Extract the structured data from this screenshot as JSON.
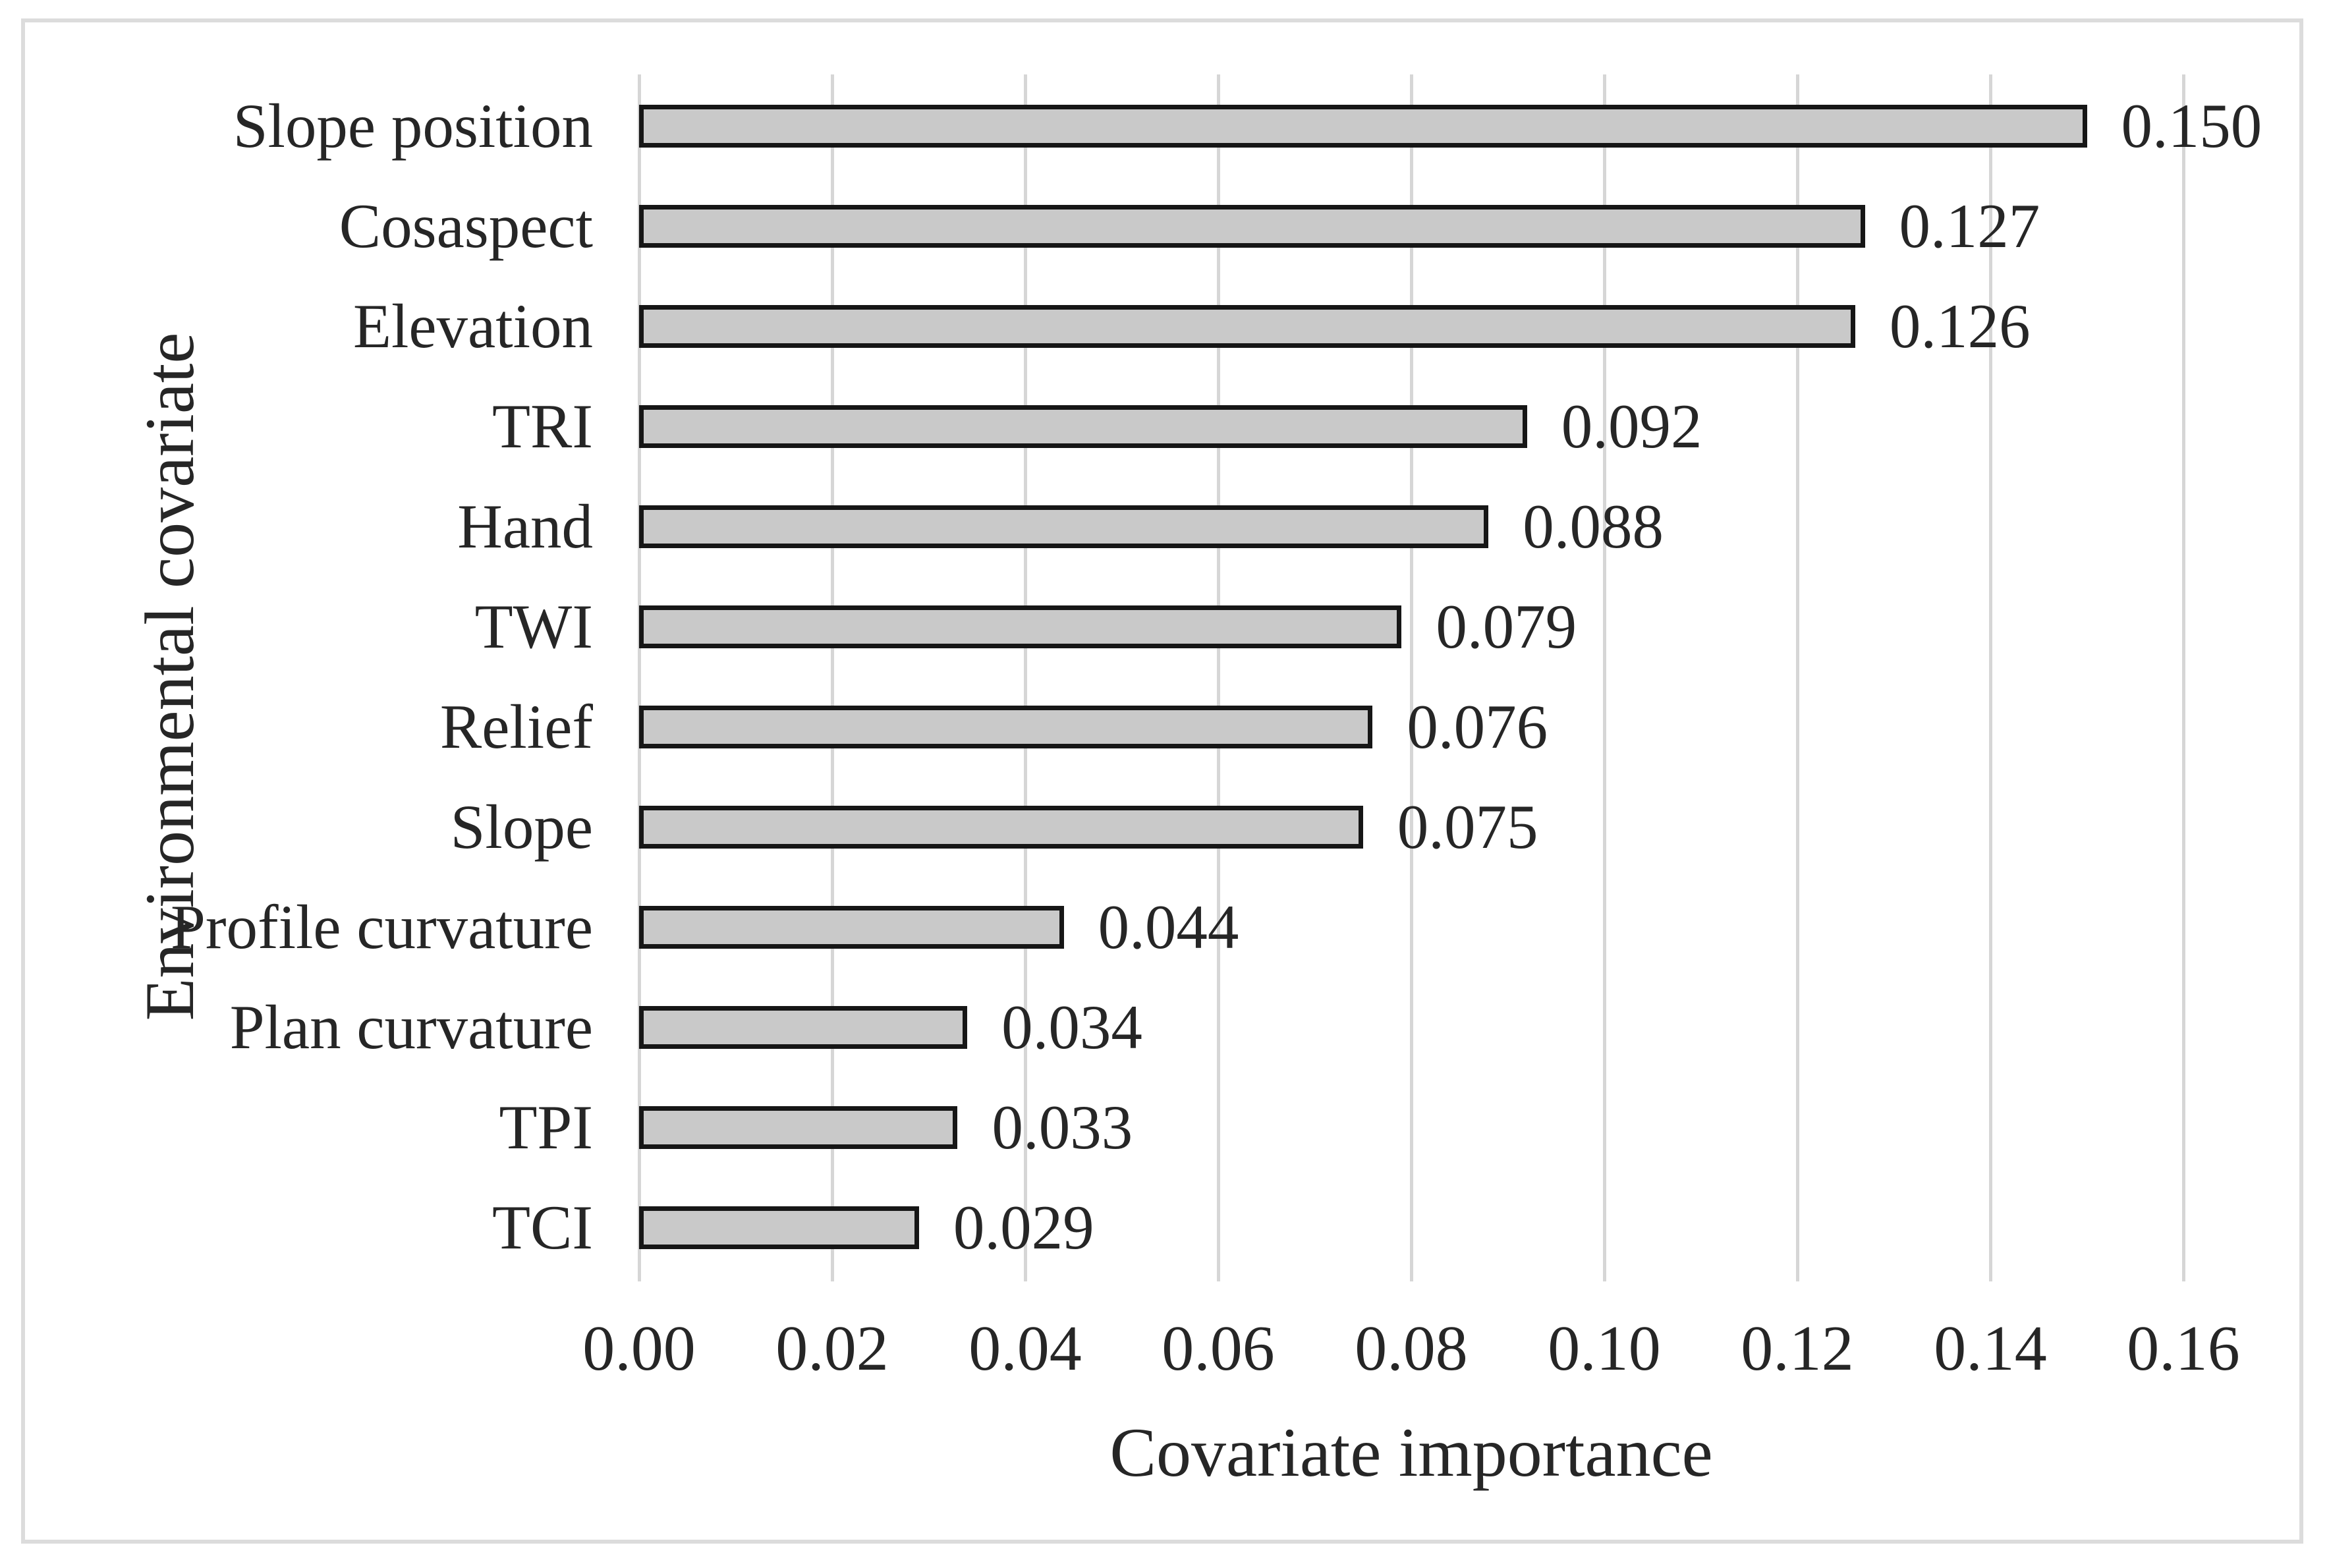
{
  "figure": {
    "background_color": "#ffffff",
    "border_color": "#dcdcdc"
  },
  "chart_data": {
    "type": "bar",
    "orientation": "horizontal",
    "title": "",
    "xlabel": "Covariate importance",
    "ylabel": "Environmental covariate",
    "categories": [
      "Slope position",
      "Cosaspect",
      "Elevation",
      "TRI",
      "Hand",
      "TWI",
      "Relief",
      "Slope",
      "Profile curvature",
      "Plan curvature",
      "TPI",
      "TCI"
    ],
    "values": [
      0.15,
      0.127,
      0.126,
      0.092,
      0.088,
      0.079,
      0.076,
      0.075,
      0.044,
      0.034,
      0.033,
      0.029
    ],
    "value_labels": [
      "0.150",
      "0.127",
      "0.126",
      "0.092",
      "0.088",
      "0.079",
      "0.076",
      "0.075",
      "0.044",
      "0.034",
      "0.033",
      "0.029"
    ],
    "xlim": [
      0,
      0.16
    ],
    "xtick_values": [
      0.0,
      0.02,
      0.04,
      0.06,
      0.08,
      0.1,
      0.12,
      0.14,
      0.16
    ],
    "xtick_labels": [
      "0.00",
      "0.02",
      "0.04",
      "0.06",
      "0.08",
      "0.10",
      "0.12",
      "0.14",
      "0.16"
    ],
    "grid": "vertical-gridlines-on",
    "legend": "none",
    "bar_fill_color": "#c9c9c9",
    "bar_border_color": "#161616",
    "gridline_color": "#d6d6d6",
    "text_color": "#262626"
  }
}
